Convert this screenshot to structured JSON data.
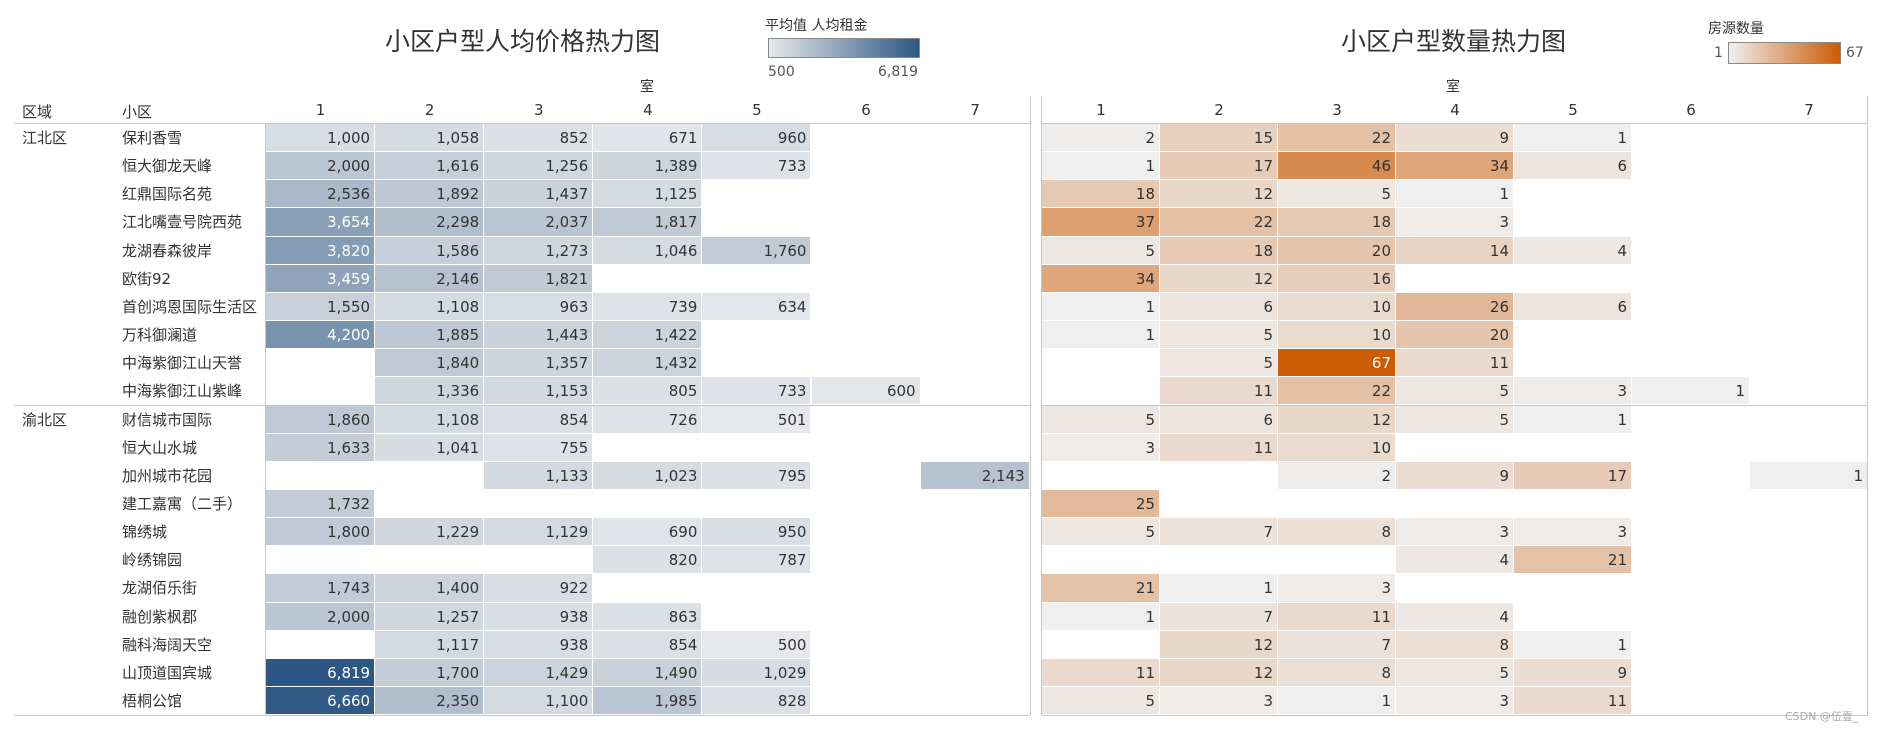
{
  "left": {
    "title": "小区户型人均价格热力图",
    "legend_title": "平均值 人均租金",
    "legend_min": "500",
    "legend_max": "6,819",
    "legend_min_value": 500,
    "legend_max_value": 6819,
    "color_low": "#e6e8eb",
    "color_high": "#2c5783",
    "axis_title": "室"
  },
  "right": {
    "title": "小区户型数量热力图",
    "legend_title": "房源数量",
    "legend_min": "1",
    "legend_max": "67",
    "legend_min_value": 1,
    "legend_max_value": 67,
    "color_low": "#efefef",
    "color_high": "#cc5c06",
    "axis_title": "室"
  },
  "headers": {
    "region": "区域",
    "community": "小区"
  },
  "columns": [
    "1",
    "2",
    "3",
    "4",
    "5",
    "6",
    "7"
  ],
  "regions": [
    {
      "name": "江北区",
      "row_start": 0
    },
    {
      "name": "渝北区",
      "row_start": 10
    }
  ],
  "rows": [
    {
      "name": "保利香雪",
      "price": [
        1000,
        1058,
        852,
        671,
        960,
        null,
        null
      ],
      "count": [
        2,
        15,
        22,
        9,
        1,
        null,
        null
      ]
    },
    {
      "name": "恒大御龙天峰",
      "price": [
        2000,
        1616,
        1256,
        1389,
        733,
        null,
        null
      ],
      "count": [
        1,
        17,
        46,
        34,
        6,
        null,
        null
      ]
    },
    {
      "name": "红鼎国际名苑",
      "price": [
        2536,
        1892,
        1437,
        1125,
        null,
        null,
        null
      ],
      "count": [
        18,
        12,
        5,
        1,
        null,
        null,
        null
      ]
    },
    {
      "name": "江北嘴壹号院西苑",
      "price": [
        3654,
        2298,
        2037,
        1817,
        null,
        null,
        null
      ],
      "count": [
        37,
        22,
        18,
        3,
        null,
        null,
        null
      ]
    },
    {
      "name": "龙湖春森彼岸",
      "price": [
        3820,
        1586,
        1273,
        1046,
        1760,
        null,
        null
      ],
      "count": [
        5,
        18,
        20,
        14,
        4,
        null,
        null
      ]
    },
    {
      "name": "欧街92",
      "price": [
        3459,
        2146,
        1821,
        null,
        null,
        null,
        null
      ],
      "count": [
        34,
        12,
        16,
        null,
        null,
        null,
        null
      ]
    },
    {
      "name": "首创鸿恩国际生活区",
      "price": [
        1550,
        1108,
        963,
        739,
        634,
        null,
        null
      ],
      "count": [
        1,
        6,
        10,
        26,
        6,
        null,
        null
      ]
    },
    {
      "name": "万科御澜道",
      "price": [
        4200,
        1885,
        1443,
        1422,
        null,
        null,
        null
      ],
      "count": [
        1,
        5,
        10,
        20,
        null,
        null,
        null
      ]
    },
    {
      "name": "中海紫御江山天誉",
      "price": [
        null,
        1840,
        1357,
        1432,
        null,
        null,
        null
      ],
      "count": [
        null,
        5,
        67,
        11,
        null,
        null,
        null
      ]
    },
    {
      "name": "中海紫御江山紫峰",
      "price": [
        null,
        1336,
        1153,
        805,
        733,
        600,
        null
      ],
      "count": [
        null,
        11,
        22,
        5,
        3,
        1,
        null
      ]
    },
    {
      "name": "财信城市国际",
      "price": [
        1860,
        1108,
        854,
        726,
        501,
        null,
        null
      ],
      "count": [
        5,
        6,
        12,
        5,
        1,
        null,
        null
      ]
    },
    {
      "name": "恒大山水城",
      "price": [
        1633,
        1041,
        755,
        null,
        null,
        null,
        null
      ],
      "count": [
        3,
        11,
        10,
        null,
        null,
        null,
        null
      ]
    },
    {
      "name": "加州城市花园",
      "price": [
        null,
        null,
        1133,
        1023,
        795,
        null,
        2143
      ],
      "count": [
        null,
        null,
        2,
        9,
        17,
        null,
        1
      ]
    },
    {
      "name": "建工嘉寓（二手）",
      "price": [
        1732,
        null,
        null,
        null,
        null,
        null,
        null
      ],
      "count": [
        25,
        null,
        null,
        null,
        null,
        null,
        null
      ]
    },
    {
      "name": "锦绣城",
      "price": [
        1800,
        1229,
        1129,
        690,
        950,
        null,
        null
      ],
      "count": [
        5,
        7,
        8,
        3,
        3,
        null,
        null
      ]
    },
    {
      "name": "岭绣锦园",
      "price": [
        null,
        null,
        null,
        820,
        787,
        null,
        null
      ],
      "count": [
        null,
        null,
        null,
        4,
        21,
        null,
        null
      ]
    },
    {
      "name": "龙湖佰乐街",
      "price": [
        1743,
        1400,
        922,
        null,
        null,
        null,
        null
      ],
      "count": [
        21,
        1,
        3,
        null,
        null,
        null,
        null
      ]
    },
    {
      "name": "融创紫枫郡",
      "price": [
        2000,
        1257,
        938,
        863,
        null,
        null,
        null
      ],
      "count": [
        1,
        7,
        11,
        4,
        null,
        null,
        null
      ]
    },
    {
      "name": "融科海阔天空",
      "price": [
        null,
        1117,
        938,
        854,
        500,
        null,
        null
      ],
      "count": [
        null,
        12,
        7,
        8,
        1,
        null,
        null
      ]
    },
    {
      "name": "山顶道国宾城",
      "price": [
        6819,
        1700,
        1429,
        1490,
        1029,
        null,
        null
      ],
      "count": [
        11,
        12,
        8,
        5,
        9,
        null,
        null
      ]
    },
    {
      "name": "梧桐公馆",
      "price": [
        6660,
        2350,
        1100,
        1985,
        828,
        null,
        null
      ],
      "count": [
        5,
        3,
        1,
        3,
        11,
        null,
        null
      ]
    }
  ],
  "watermark": "CSDN @伍壹_"
}
